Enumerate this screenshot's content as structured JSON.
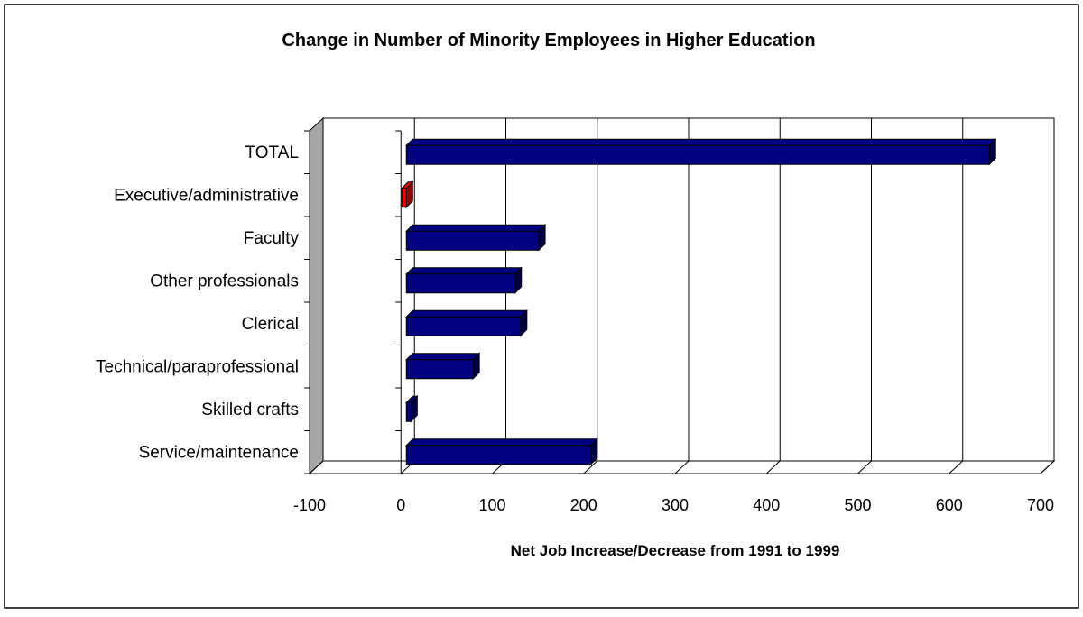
{
  "chart_data": {
    "type": "bar",
    "orientation": "horizontal",
    "title": "Change in Number of Minority Employees in Higher Education",
    "xlabel": "Net Job Increase/Decrease from 1991 to 1999",
    "ylabel": "",
    "xlim": [
      -100,
      700
    ],
    "xticks": [
      "-100",
      "0",
      "100",
      "200",
      "300",
      "400",
      "500",
      "600",
      "700"
    ],
    "grid": true,
    "legend": "none",
    "categories": [
      "TOTAL",
      "Executive/administrative",
      "Faculty",
      "Other professionals",
      "Clerical",
      "Technical/paraprofessional",
      "Skilled crafts",
      "Service/maintenance"
    ],
    "values": [
      638,
      -5,
      145,
      119,
      125,
      73,
      5,
      202
    ],
    "colors": {
      "positive": "#000080",
      "negative": "#ff0000",
      "wall": "#a6a6a6",
      "gridline": "#000000"
    }
  }
}
